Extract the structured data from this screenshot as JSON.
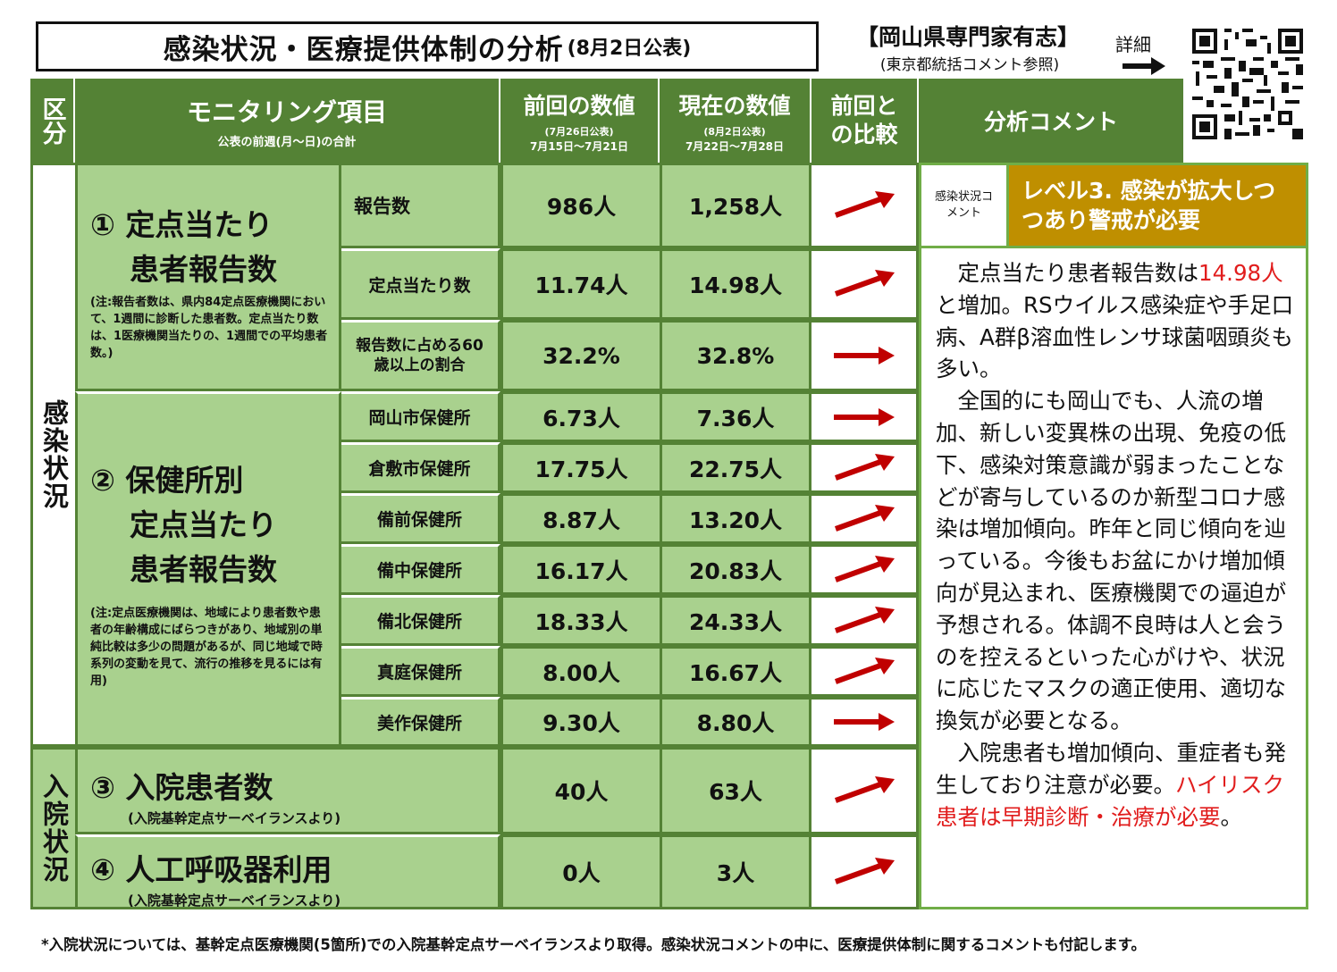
{
  "title": {
    "main": "感染状況・医療提供体制の分析",
    "date": "(8月2日公表)"
  },
  "org": {
    "name": "【岡山県専門家有志】",
    "note": "(東京都統括コメント参照)",
    "detail": "詳細"
  },
  "header": {
    "category": "区分",
    "item": "モニタリング項目",
    "item_sub": "公表の前週(月～日)の合計",
    "prev": "前回の数値",
    "prev_date": "(7月26日公表)",
    "prev_range": "7月15日～7月21日",
    "curr": "現在の数値",
    "curr_date": "(8月2日公表)",
    "curr_range": "7月22日～7月28日",
    "compare": "前回との比較",
    "comment": "分析コメント"
  },
  "sections": {
    "infection": "感染状況",
    "hospital": "入院状況"
  },
  "groups": {
    "g1_title_line1": "① 定点当たり",
    "g1_title_line2": "患者報告数",
    "g1_note": "(注:報告者数は、県内84定点医療機関において、1週間に診断した患者数。定点当たり数は、1医療機関当たりの、1週間での平均患者数。)",
    "g2_title_line1": "② 保健所別",
    "g2_title_line2": "定点当たり",
    "g2_title_line3": "患者報告数",
    "g2_note": "(注:定点医療機関は、地域により患者数や患者の年齢構成にばらつきがあり、地域別の単純比較は多少の問題があるが、同じ地域で時系列の変動を見て、流行の推移を見るには有用)",
    "g3_title": "③ 入院患者数",
    "g3_sub": "(入院基幹定点サーベイランスより)",
    "g4_title": "④ 人工呼吸器利用",
    "g4_sub": "(入院基幹定点サーベイランスより)"
  },
  "rows": [
    {
      "label": "報告数",
      "prev": "986人",
      "curr": "1,258人",
      "trend": "up"
    },
    {
      "label": "定点当たり数",
      "prev": "11.74人",
      "curr": "14.98人",
      "trend": "up"
    },
    {
      "label": "報告数に占める60歳以上の割合",
      "prev": "32.2%",
      "curr": "32.8%",
      "trend": "flat"
    },
    {
      "label": "岡山市保健所",
      "prev": "6.73人",
      "curr": "7.36人",
      "trend": "flat"
    },
    {
      "label": "倉敷市保健所",
      "prev": "17.75人",
      "curr": "22.75人",
      "trend": "up"
    },
    {
      "label": "備前保健所",
      "prev": "8.87人",
      "curr": "13.20人",
      "trend": "up"
    },
    {
      "label": "備中保健所",
      "prev": "16.17人",
      "curr": "20.83人",
      "trend": "up"
    },
    {
      "label": "備北保健所",
      "prev": "18.33人",
      "curr": "24.33人",
      "trend": "up"
    },
    {
      "label": "真庭保健所",
      "prev": "8.00人",
      "curr": "16.67人",
      "trend": "up"
    },
    {
      "label": "美作保健所",
      "prev": "9.30人",
      "curr": "8.80人",
      "trend": "flat"
    },
    {
      "label": "",
      "prev": "40人",
      "curr": "63人",
      "trend": "up"
    },
    {
      "label": "",
      "prev": "0人",
      "curr": "3人",
      "trend": "up"
    }
  ],
  "status": {
    "label": "感染状況コメント",
    "level": "レベル3. 感染が拡大しつつあり警戒が必要",
    "level_color": "#bf8f00"
  },
  "comment": {
    "p1a": "定点当たり患者報告数は",
    "p1b": "14.98人",
    "p1c": "と増加。RSウイルス感染症や手足口病、A群β溶血性レンサ球菌咽頭炎も多い。",
    "p2": "全国的にも岡山でも、人流の増加、新しい変異株の出現、免疫の低下、感染対策意識が弱まったことなどが寄与しているのか新型コロナ感染は増加傾向。昨年と同じ傾向を辿っている。今後もお盆にかけ増加傾向が見込まれ、医療機関での逼迫が予想される。体調不良時は人と会うのを控えるといった心がけや、状況に応じたマスクの適正使用、適切な換気が必要となる。",
    "p3a": "入院患者も増加傾向、重症者も発生しており注意が必要。",
    "p3b": "ハイリスク患者は早期診断・治療が必要",
    "p3c": "。"
  },
  "footnote": "*入院状況については、基幹定点医療機関(5箇所)での入院基幹定点サーベイランスより取得。感染状況コメントの中に、医療提供体制に関するコメントも付記します。",
  "colors": {
    "header": "#548235",
    "light": "#a9d18e",
    "dark_band": "#70ad47",
    "arrow": "#c00000"
  }
}
